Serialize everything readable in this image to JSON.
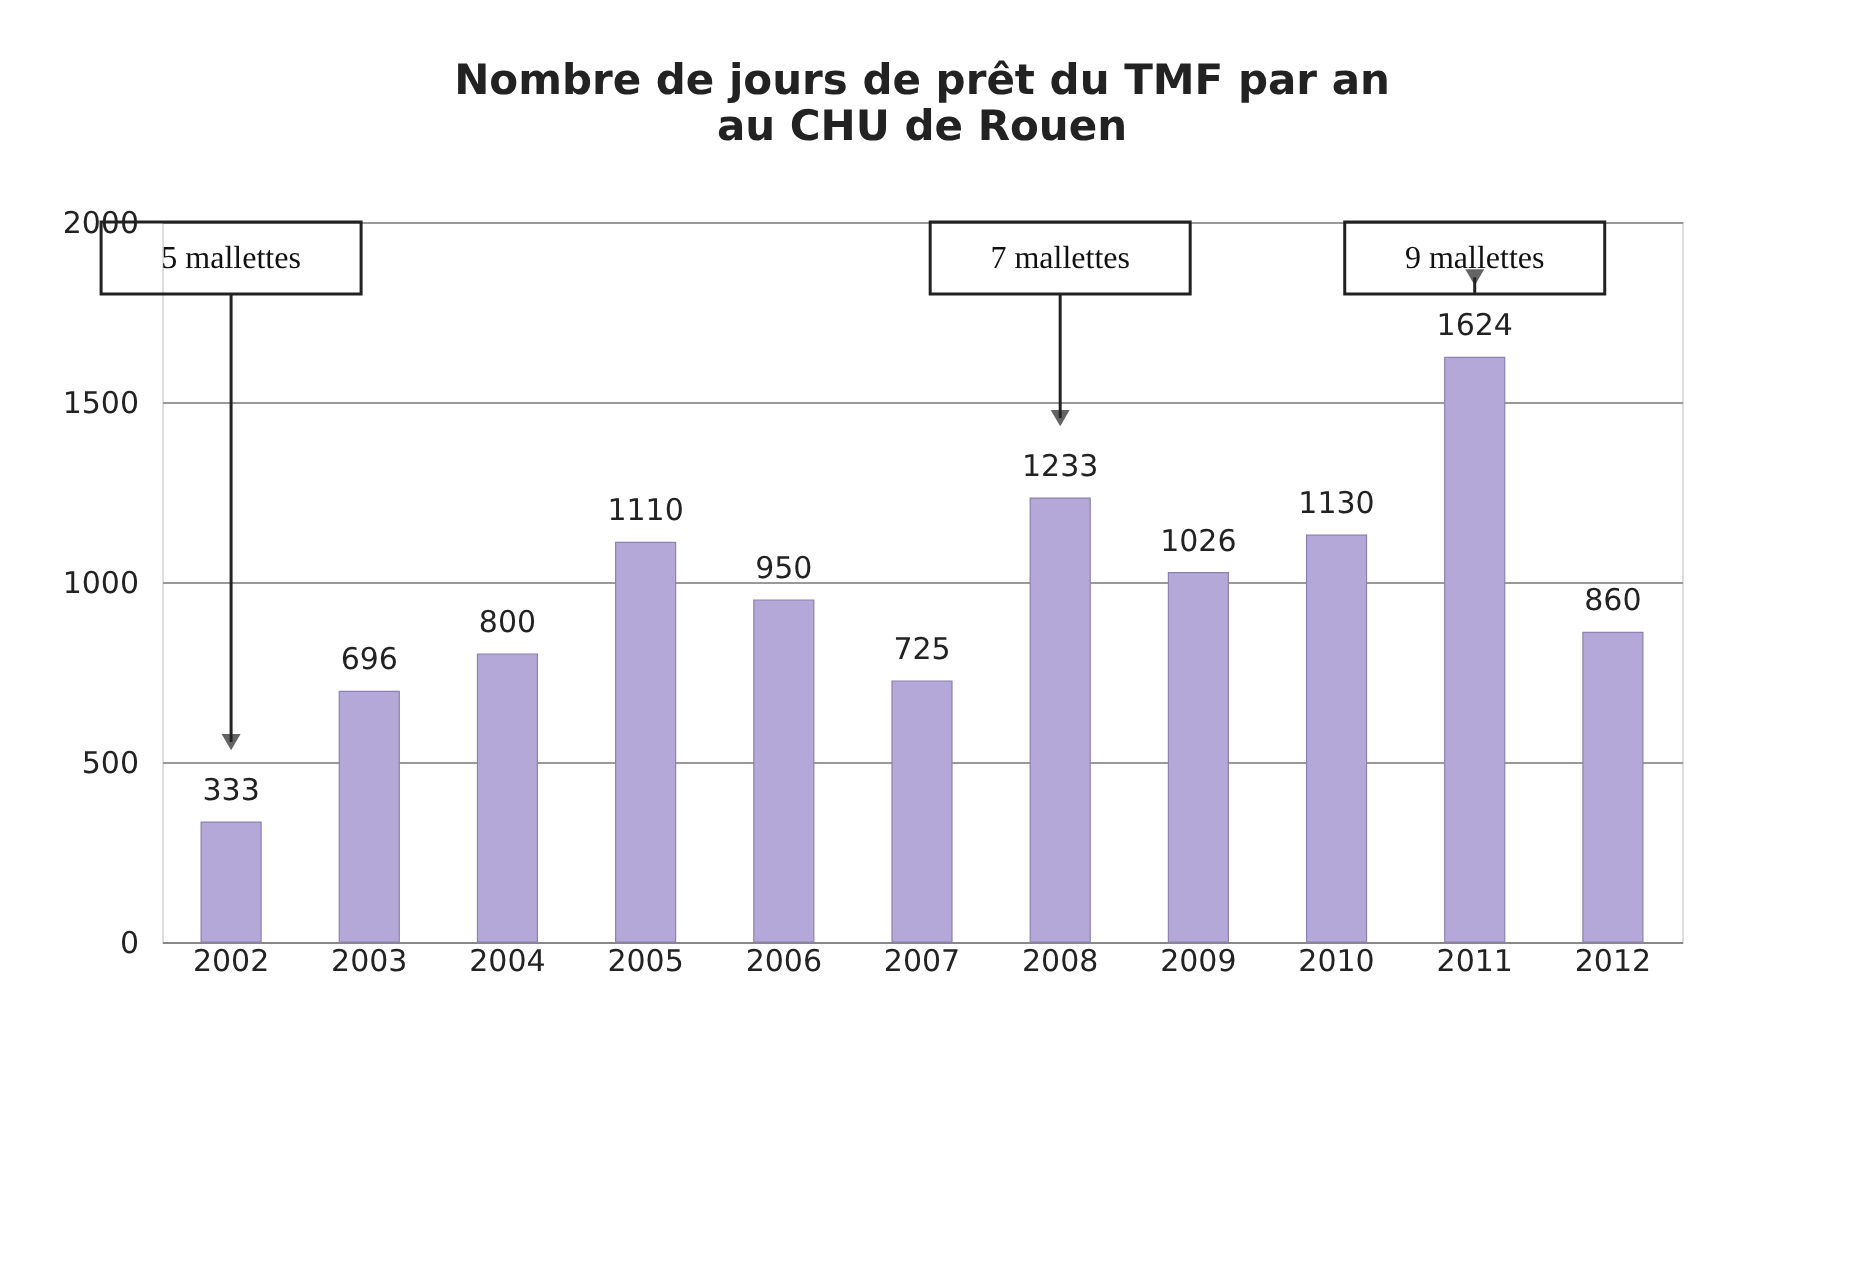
{
  "chart_data": {
    "type": "bar",
    "title": [
      "Nombre de jours de prêt du TMF par an",
      "au CHU de Rouen"
    ],
    "categories": [
      "2002",
      "2003",
      "2004",
      "2005",
      "2006",
      "2007",
      "2008",
      "2009",
      "2010",
      "2011",
      "2012"
    ],
    "values": [
      333,
      696,
      800,
      1110,
      950,
      725,
      1233,
      1026,
      1130,
      1624,
      860
    ],
    "color": "#b4a8d8",
    "ylim": [
      0,
      2000
    ],
    "yticks": [
      0,
      500,
      1000,
      1500,
      2000
    ],
    "grid": "y",
    "data_labels": true,
    "annotations": [
      "5 mallettes",
      "7 mallettes",
      "9 mallettes"
    ]
  }
}
